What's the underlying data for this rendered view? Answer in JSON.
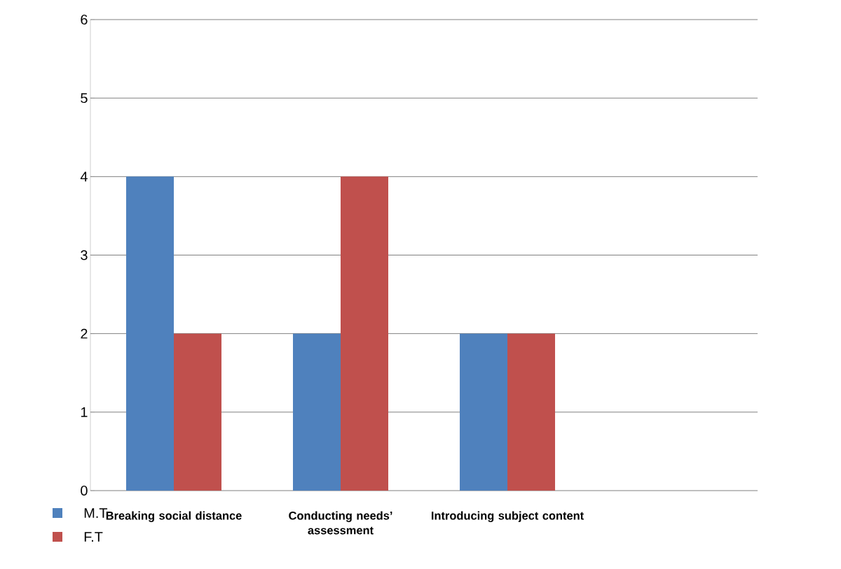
{
  "chart_data": {
    "type": "bar",
    "categories": [
      "Breaking social distance",
      "Conducting needs’ assessment",
      "Introducing subject content",
      null
    ],
    "series": [
      {
        "name": "M.T",
        "color": "#4f81bd",
        "values": [
          4,
          2,
          2,
          null
        ]
      },
      {
        "name": "F.T",
        "color": "#c0504d",
        "values": [
          2,
          4,
          2,
          null
        ]
      }
    ],
    "ylim": [
      0,
      6
    ],
    "yticks": [
      0,
      1,
      2,
      3,
      4,
      5,
      6
    ],
    "grid": "y",
    "legend": "bottom left"
  }
}
